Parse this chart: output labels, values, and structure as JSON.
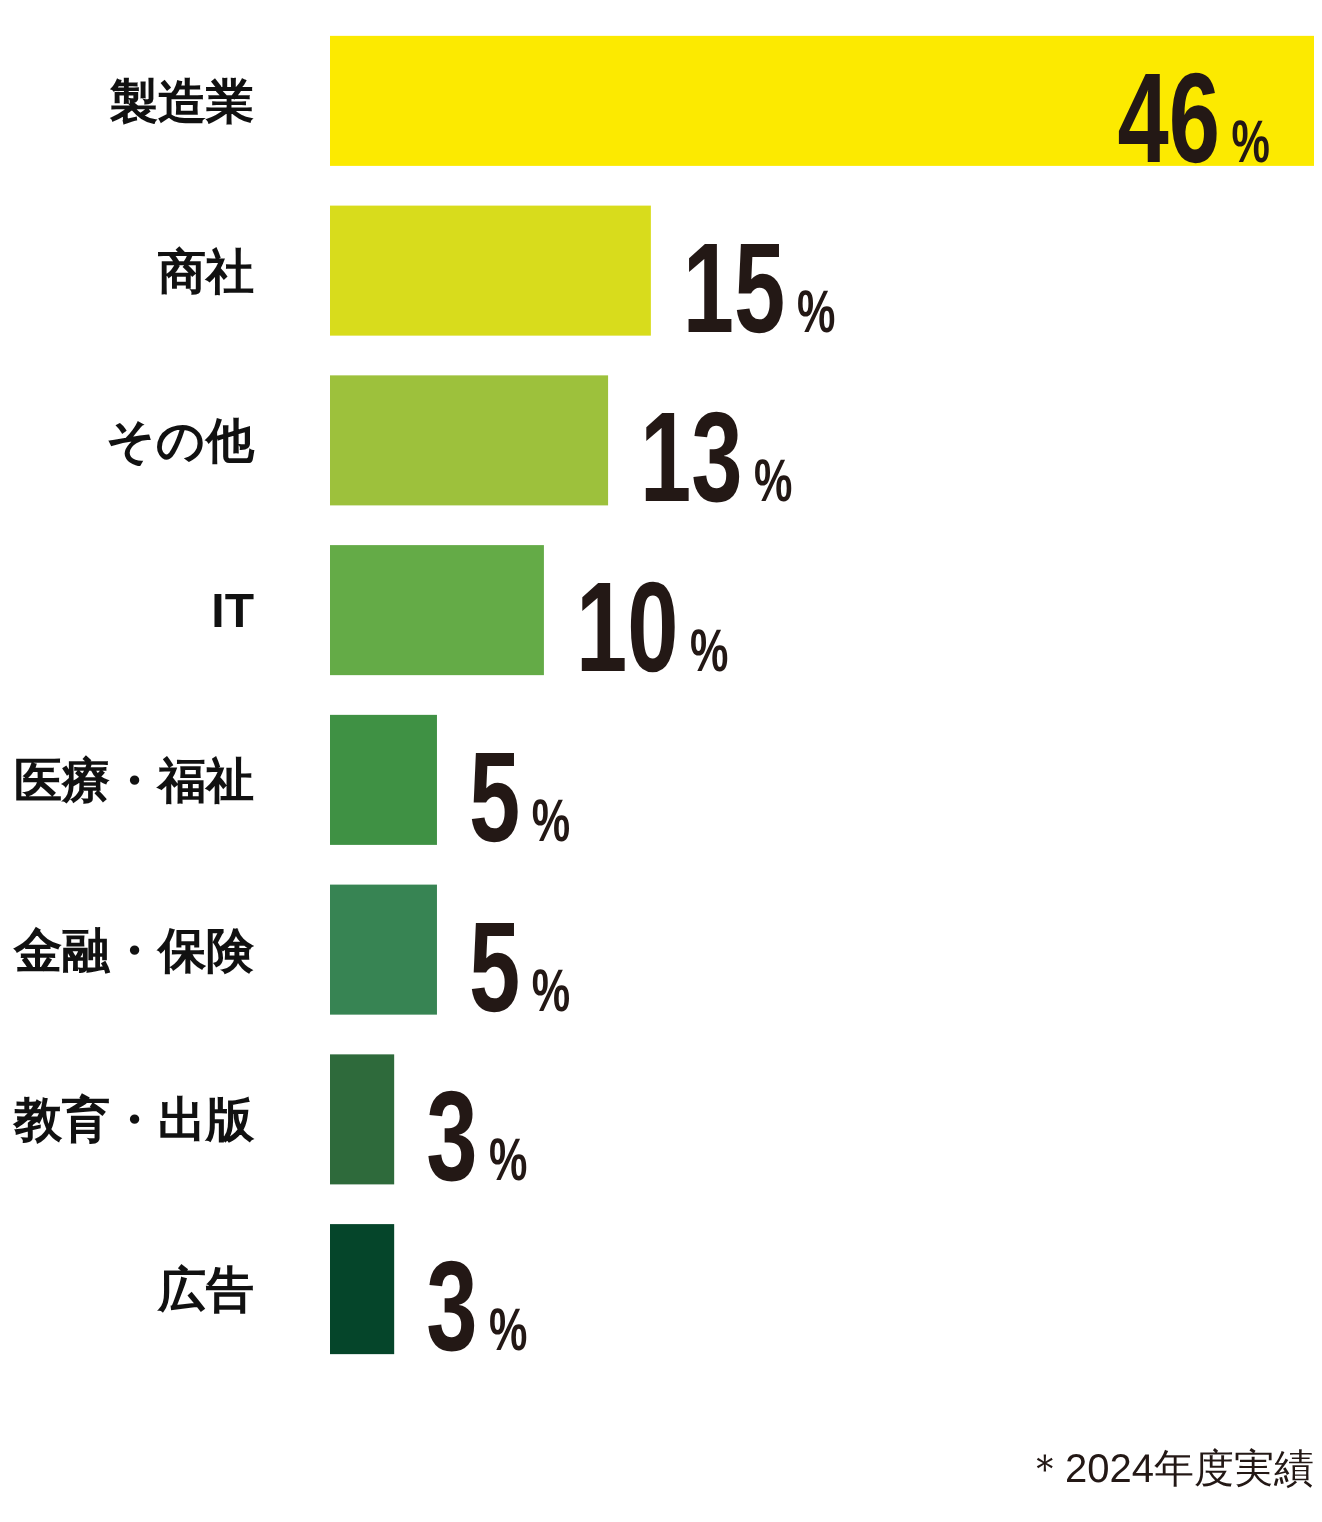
{
  "chart_data": {
    "type": "bar",
    "orientation": "horizontal",
    "categories": [
      "製造業",
      "商社",
      "その他",
      "IT",
      "医療・福祉",
      "金融・保険",
      "教育・出版",
      "広告"
    ],
    "values": [
      46,
      15,
      13,
      10,
      5,
      5,
      3,
      3
    ],
    "colors": [
      "#fcea00",
      "#d8dc1c",
      "#9dc13c",
      "#64ab47",
      "#3f9144",
      "#378453",
      "#2e6a3b",
      "#05452a"
    ],
    "value_labels": [
      "46%",
      "15%",
      "13%",
      "10%",
      "5%",
      "5%",
      "3%",
      "3%"
    ],
    "annotations": [
      "＊2024年度実績"
    ]
  }
}
